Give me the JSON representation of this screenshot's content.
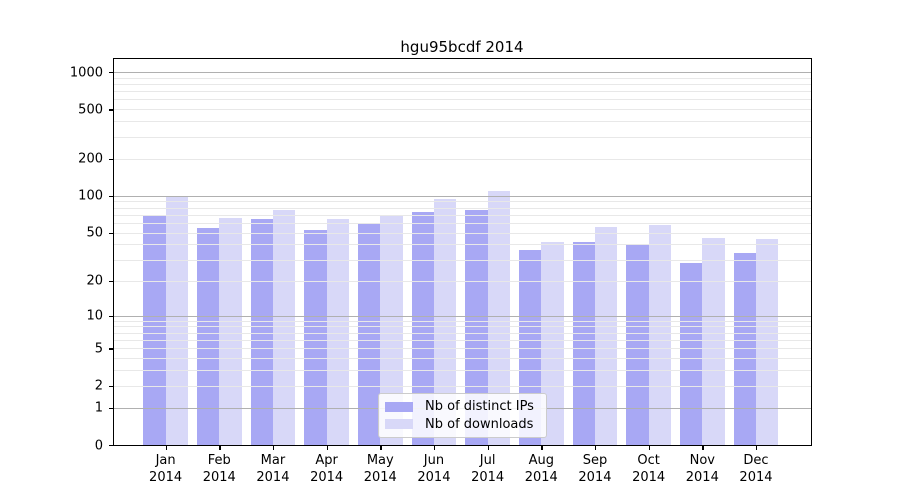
{
  "title": "hgu95bcdf 2014",
  "chart_data": {
    "type": "bar",
    "title": "hgu95bcdf 2014",
    "categories": [
      "Jan",
      "Feb",
      "Mar",
      "Apr",
      "May",
      "Jun",
      "Jul",
      "Aug",
      "Sep",
      "Oct",
      "Nov",
      "Dec"
    ],
    "x_tick_second_line": "2014",
    "series": [
      {
        "name": "Nb of distinct IPs",
        "color": "#a8a8f4",
        "values": [
          70,
          55,
          65,
          53,
          60,
          74,
          77,
          36,
          42,
          40,
          28,
          34
        ]
      },
      {
        "name": "Nb of downloads",
        "color": "#d8d8f8",
        "values": [
          97,
          66,
          76,
          65,
          68,
          94,
          110,
          42,
          56,
          58,
          45,
          44
        ]
      }
    ],
    "y_ticks": [
      0,
      1,
      2,
      5,
      10,
      20,
      50,
      100,
      200,
      500,
      1000
    ],
    "y_scale": "log1p",
    "ylim": [
      0,
      1290
    ],
    "grid": "major-decades-dark, minor-light, drawn over bars",
    "legend_position": "lower center"
  },
  "colors": {
    "bar_distinct_ips": "#a8a8f4",
    "bar_downloads": "#d8d8f8",
    "grid_major": "#b0b0b0",
    "grid_minor": "#e8e8e8",
    "axis": "#000000",
    "legend_border": "#cccccc",
    "background": "#ffffff"
  }
}
